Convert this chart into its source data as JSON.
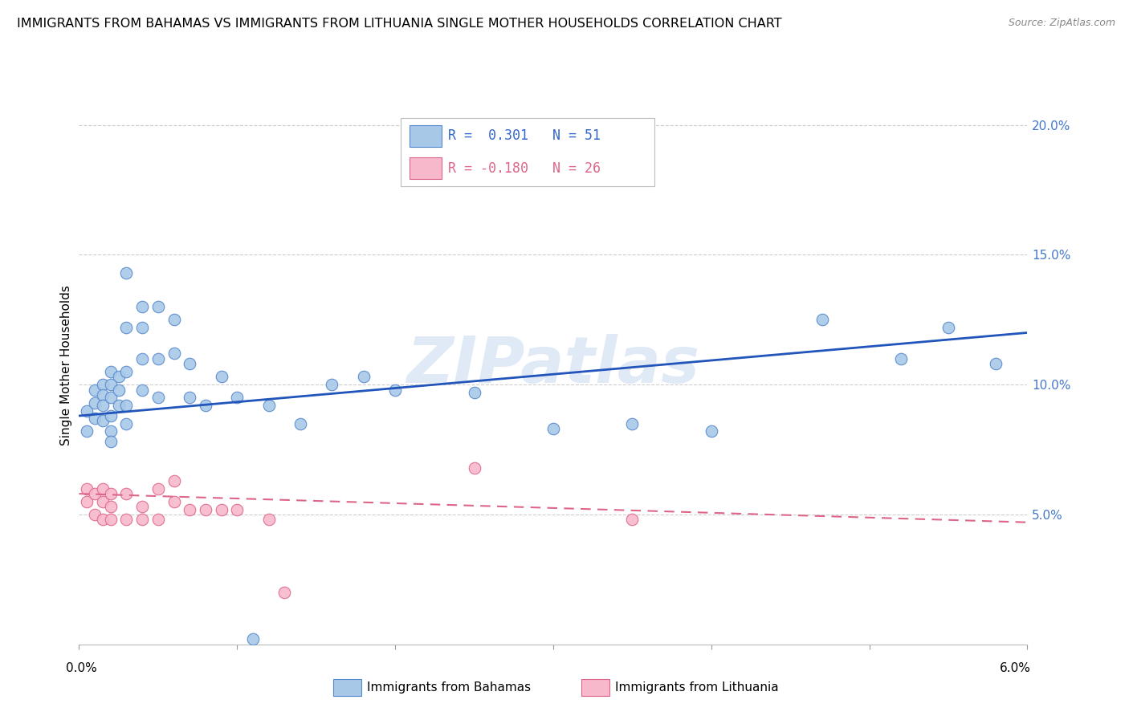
{
  "title": "IMMIGRANTS FROM BAHAMAS VS IMMIGRANTS FROM LITHUANIA SINGLE MOTHER HOUSEHOLDS CORRELATION CHART",
  "source": "Source: ZipAtlas.com",
  "ylabel": "Single Mother Households",
  "right_yticklabels": [
    "",
    "5.0%",
    "10.0%",
    "15.0%",
    "20.0%"
  ],
  "xmin": 0.0,
  "xmax": 0.06,
  "ymin": 0.0,
  "ymax": 0.215,
  "watermark": "ZIPatlas",
  "bahamas_color": "#a8c8e8",
  "bahamas_edge": "#5588cc",
  "lithuania_color": "#f8b8cc",
  "lithuania_edge": "#dd6688",
  "line_bahamas_color": "#2255bb",
  "line_lithuania_color": "#dd6688",
  "bahamas_x": [
    0.0005,
    0.0005,
    0.001,
    0.001,
    0.001,
    0.0015,
    0.0015,
    0.0015,
    0.0015,
    0.002,
    0.002,
    0.002,
    0.002,
    0.002,
    0.002,
    0.0025,
    0.0025,
    0.0025,
    0.003,
    0.003,
    0.003,
    0.003,
    0.003,
    0.004,
    0.004,
    0.004,
    0.004,
    0.005,
    0.005,
    0.005,
    0.006,
    0.006,
    0.007,
    0.007,
    0.008,
    0.009,
    0.01,
    0.011,
    0.012,
    0.014,
    0.016,
    0.018,
    0.02,
    0.025,
    0.03,
    0.035,
    0.04,
    0.047,
    0.052,
    0.055,
    0.058
  ],
  "bahamas_y": [
    0.09,
    0.082,
    0.098,
    0.093,
    0.087,
    0.1,
    0.096,
    0.092,
    0.086,
    0.105,
    0.1,
    0.095,
    0.088,
    0.082,
    0.078,
    0.103,
    0.098,
    0.092,
    0.143,
    0.122,
    0.105,
    0.092,
    0.085,
    0.13,
    0.122,
    0.11,
    0.098,
    0.13,
    0.11,
    0.095,
    0.125,
    0.112,
    0.108,
    0.095,
    0.092,
    0.103,
    0.095,
    0.002,
    0.092,
    0.085,
    0.1,
    0.103,
    0.098,
    0.097,
    0.083,
    0.085,
    0.082,
    0.125,
    0.11,
    0.122,
    0.108
  ],
  "lithuania_x": [
    0.0005,
    0.0005,
    0.001,
    0.001,
    0.0015,
    0.0015,
    0.0015,
    0.002,
    0.002,
    0.002,
    0.003,
    0.003,
    0.004,
    0.004,
    0.005,
    0.005,
    0.006,
    0.006,
    0.007,
    0.008,
    0.009,
    0.01,
    0.012,
    0.013,
    0.025,
    0.035
  ],
  "lithuania_y": [
    0.06,
    0.055,
    0.058,
    0.05,
    0.06,
    0.055,
    0.048,
    0.058,
    0.053,
    0.048,
    0.058,
    0.048,
    0.053,
    0.048,
    0.06,
    0.048,
    0.063,
    0.055,
    0.052,
    0.052,
    0.052,
    0.052,
    0.048,
    0.02,
    0.068,
    0.048
  ],
  "bahamas_line_x": [
    0.0,
    0.06
  ],
  "bahamas_line_y": [
    0.088,
    0.12
  ],
  "lithuania_line_x": [
    0.0,
    0.06
  ],
  "lithuania_line_y": [
    0.058,
    0.047
  ]
}
